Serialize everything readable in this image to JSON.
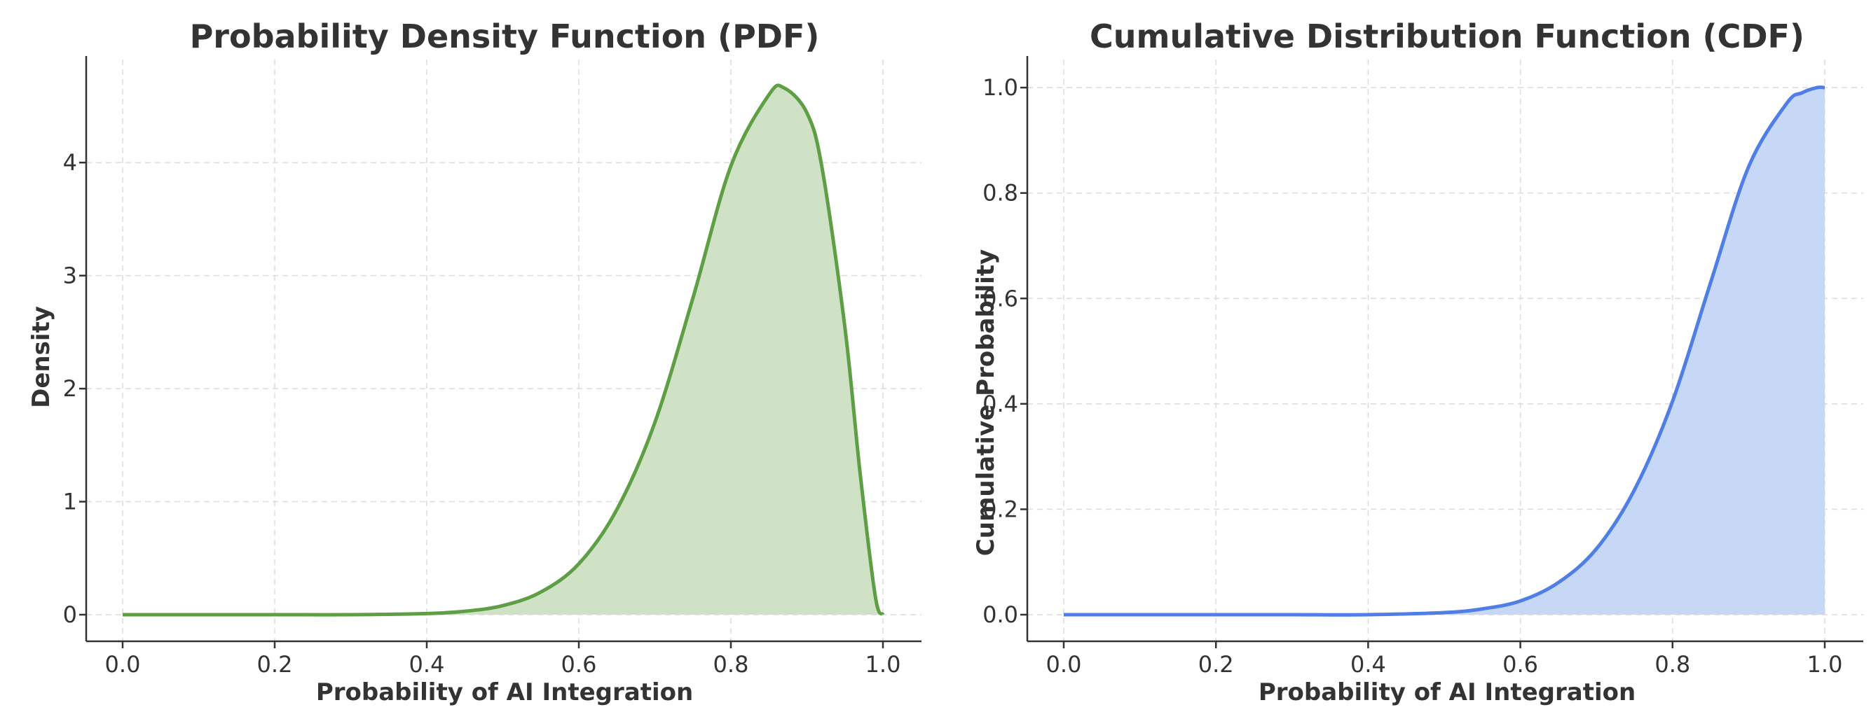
{
  "chart_data": [
    {
      "type": "area",
      "title": "Probability Density Function (PDF)",
      "xlabel": "Probability of AI Integration",
      "ylabel": "Density",
      "xlim": [
        0,
        1
      ],
      "ylim": [
        0,
        4.85
      ],
      "xticks": [
        0.0,
        0.2,
        0.4,
        0.6,
        0.8,
        1.0
      ],
      "xtick_labels": [
        "0.0",
        "0.2",
        "0.4",
        "0.6",
        "0.8",
        "1.0"
      ],
      "yticks": [
        0,
        1,
        2,
        3,
        4
      ],
      "ytick_labels": [
        "0",
        "1",
        "2",
        "3",
        "4"
      ],
      "grid": true,
      "line_color": "#5e9e44",
      "fill_color": "#cfe2c6",
      "x": [
        0.0,
        0.1,
        0.2,
        0.3,
        0.4,
        0.45,
        0.5,
        0.55,
        0.6,
        0.65,
        0.7,
        0.75,
        0.8,
        0.85,
        0.87,
        0.9,
        0.92,
        0.95,
        0.97,
        0.99,
        1.0
      ],
      "y": [
        0.0,
        0.0,
        0.0,
        0.0,
        0.01,
        0.03,
        0.08,
        0.2,
        0.45,
        0.93,
        1.7,
        2.8,
        3.97,
        4.6,
        4.66,
        4.44,
        3.95,
        2.54,
        1.25,
        0.16,
        0.0
      ]
    },
    {
      "type": "area",
      "title": "Cumulative Distribution Function (CDF)",
      "xlabel": "Probability of AI Integration",
      "ylabel": "Cumulative Probability",
      "xlim": [
        0,
        1
      ],
      "ylim": [
        0,
        1.04
      ],
      "xticks": [
        0.0,
        0.2,
        0.4,
        0.6,
        0.8,
        1.0
      ],
      "xtick_labels": [
        "0.0",
        "0.2",
        "0.4",
        "0.6",
        "0.8",
        "1.0"
      ],
      "yticks": [
        0.0,
        0.2,
        0.4,
        0.6,
        0.8,
        1.0
      ],
      "ytick_labels": [
        "0.0",
        "0.2",
        "0.4",
        "0.6",
        "0.8",
        "1.0"
      ],
      "grid": true,
      "line_color": "#4f7fe6",
      "fill_color": "#c6d8f5",
      "x": [
        0.0,
        0.1,
        0.2,
        0.3,
        0.4,
        0.5,
        0.55,
        0.6,
        0.65,
        0.7,
        0.75,
        0.8,
        0.85,
        0.9,
        0.95,
        0.97,
        0.99,
        1.0
      ],
      "y": [
        0.0,
        0.0,
        0.0,
        0.0,
        0.0,
        0.004,
        0.011,
        0.026,
        0.061,
        0.125,
        0.237,
        0.405,
        0.63,
        0.85,
        0.97,
        0.99,
        1.0,
        1.0
      ]
    }
  ]
}
